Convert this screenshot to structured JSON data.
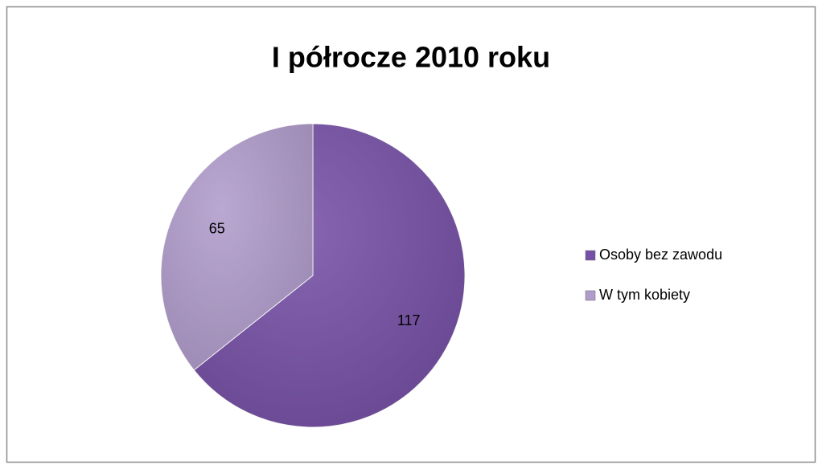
{
  "chart_data": {
    "type": "pie",
    "title": "I półrocze 2010 roku",
    "categories": [
      "Osoby bez zawodu",
      "W tym kobiety"
    ],
    "values": [
      117,
      65
    ],
    "colors": [
      "#7650a6",
      "#b09ccb"
    ],
    "legend": "right"
  }
}
